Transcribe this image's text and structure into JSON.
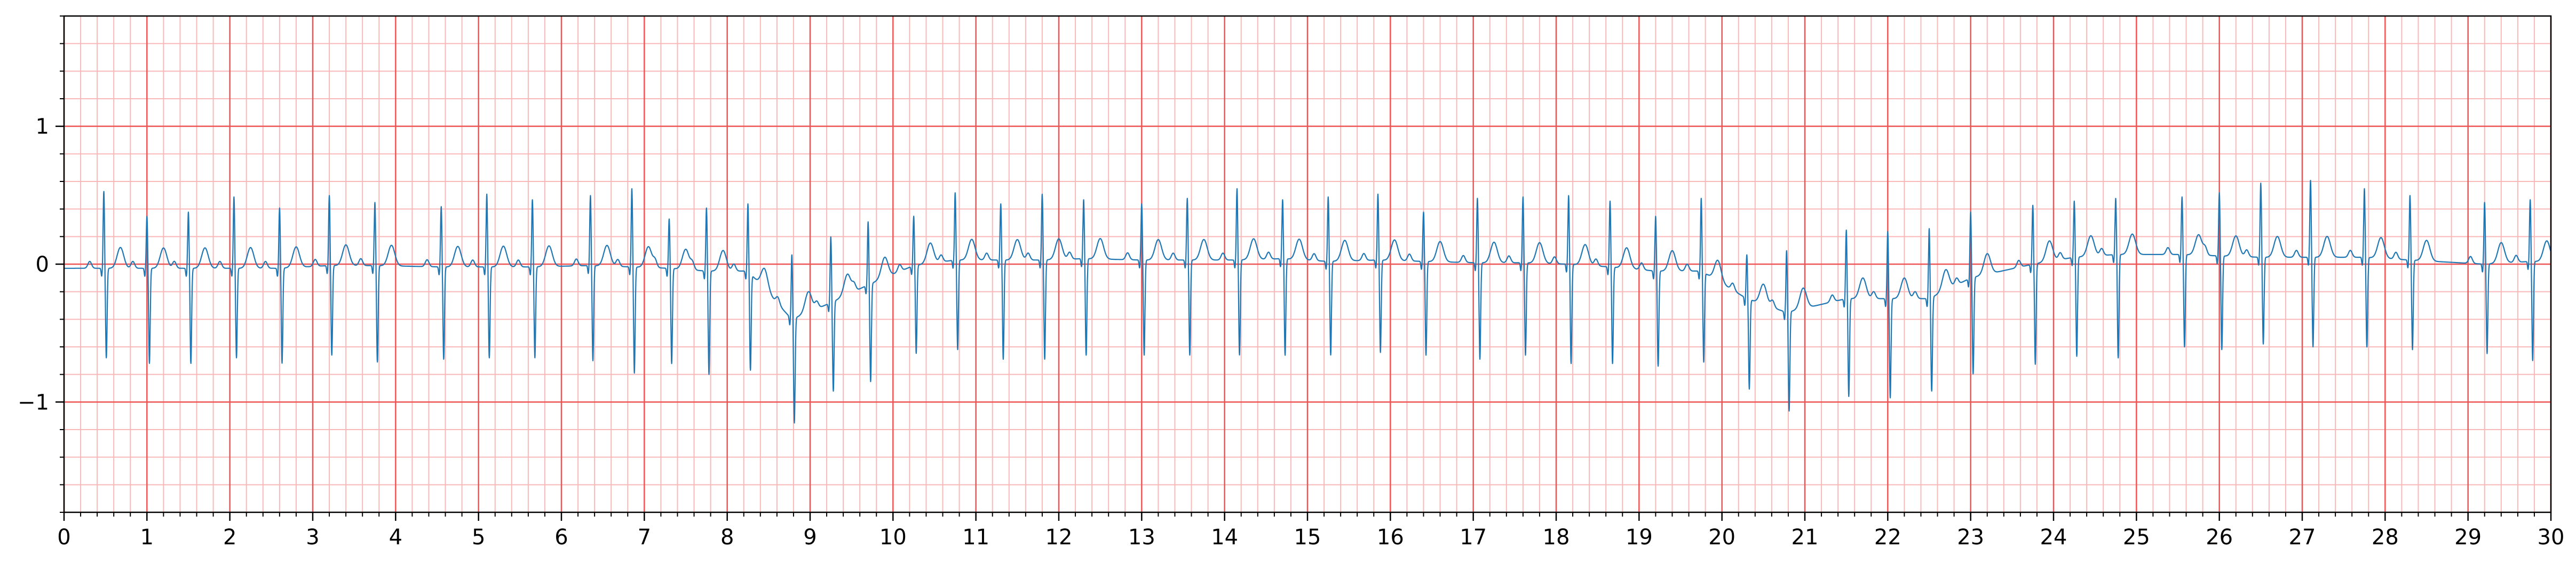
{
  "chart_data": {
    "type": "line",
    "title": "",
    "xlabel": "",
    "ylabel": "",
    "xlim": [
      0,
      30
    ],
    "ylim": [
      -1.8,
      1.8
    ],
    "x_ticks": [
      0,
      1,
      2,
      3,
      4,
      5,
      6,
      7,
      8,
      9,
      10,
      11,
      12,
      13,
      14,
      15,
      16,
      17,
      18,
      19,
      20,
      21,
      22,
      23,
      24,
      25,
      26,
      27,
      28,
      29,
      30
    ],
    "x_tick_labels": [
      "0",
      "1",
      "2",
      "3",
      "4",
      "5",
      "6",
      "7",
      "8",
      "9",
      "10",
      "11",
      "12",
      "13",
      "14",
      "15",
      "16",
      "17",
      "18",
      "19",
      "20",
      "21",
      "22",
      "23",
      "24",
      "25",
      "26",
      "27",
      "28",
      "29",
      "30"
    ],
    "y_ticks": [
      -1,
      0,
      1
    ],
    "y_tick_labels": [
      "−1",
      "0",
      "1"
    ],
    "grid": {
      "major": true,
      "minor": true,
      "major_x_step": 1,
      "major_y_step": 1,
      "minor_x_step": 0.2,
      "minor_y_step": 0.2,
      "major_color": "#ee5555",
      "minor_color": "#f9b9b9"
    },
    "line_color": "#1f77b4",
    "background_color": "#ffffff",
    "series": [
      {
        "beats": [
          {
            "t": 0.48,
            "r": 0.53,
            "s": -0.68,
            "b": -0.03
          },
          {
            "t": 1.0,
            "r": 0.35,
            "s": -0.72,
            "b": -0.03
          },
          {
            "t": 1.5,
            "r": 0.38,
            "s": -0.72,
            "b": -0.03
          },
          {
            "t": 2.05,
            "r": 0.49,
            "s": -0.68,
            "b": -0.03
          },
          {
            "t": 2.6,
            "r": 0.41,
            "s": -0.72,
            "b": -0.03
          },
          {
            "t": 3.2,
            "r": 0.5,
            "s": -0.66,
            "b": -0.01
          },
          {
            "t": 3.75,
            "r": 0.45,
            "s": -0.71,
            "b": -0.01
          },
          {
            "t": 4.55,
            "r": 0.42,
            "s": -0.69,
            "b": -0.02
          },
          {
            "t": 5.1,
            "r": 0.51,
            "s": -0.68,
            "b": -0.02
          },
          {
            "t": 5.65,
            "r": 0.47,
            "s": -0.68,
            "b": -0.02
          },
          {
            "t": 6.35,
            "r": 0.5,
            "s": -0.7,
            "b": -0.01
          },
          {
            "t": 6.85,
            "r": 0.55,
            "s": -0.79,
            "b": -0.02
          },
          {
            "t": 7.3,
            "r": 0.33,
            "s": -0.72,
            "b": -0.03
          },
          {
            "t": 7.75,
            "r": 0.41,
            "s": -0.8,
            "b": -0.05
          },
          {
            "t": 8.25,
            "r": 0.44,
            "s": -0.75,
            "b": -0.05
          },
          {
            "t": 8.78,
            "r": 0.07,
            "s": -1.16,
            "b": -0.4
          },
          {
            "t": 9.25,
            "r": 0.2,
            "s": -0.93,
            "b": -0.28
          },
          {
            "t": 9.7,
            "r": 0.31,
            "s": -0.86,
            "b": -0.15
          },
          {
            "t": 10.25,
            "r": 0.35,
            "s": -0.65,
            "b": -0.01
          },
          {
            "t": 10.75,
            "r": 0.52,
            "s": -0.62,
            "b": 0.03
          },
          {
            "t": 11.3,
            "r": 0.44,
            "s": -0.69,
            "b": 0.03
          },
          {
            "t": 11.8,
            "r": 0.51,
            "s": -0.69,
            "b": 0.03
          },
          {
            "t": 12.3,
            "r": 0.47,
            "s": -0.66,
            "b": 0.04
          },
          {
            "t": 13.0,
            "r": 0.44,
            "s": -0.66,
            "b": 0.03
          },
          {
            "t": 13.55,
            "r": 0.48,
            "s": -0.66,
            "b": 0.03
          },
          {
            "t": 14.15,
            "r": 0.55,
            "s": -0.66,
            "b": 0.03
          },
          {
            "t": 14.7,
            "r": 0.47,
            "s": -0.66,
            "b": 0.04
          },
          {
            "t": 15.25,
            "r": 0.49,
            "s": -0.66,
            "b": 0.02
          },
          {
            "t": 15.85,
            "r": 0.51,
            "s": -0.64,
            "b": 0.03
          },
          {
            "t": 16.4,
            "r": 0.38,
            "s": -0.66,
            "b": 0.02
          },
          {
            "t": 17.05,
            "r": 0.48,
            "s": -0.69,
            "b": 0.01
          },
          {
            "t": 17.6,
            "r": 0.49,
            "s": -0.66,
            "b": 0.01
          },
          {
            "t": 18.15,
            "r": 0.5,
            "s": -0.72,
            "b": 0.0
          },
          {
            "t": 18.65,
            "r": 0.46,
            "s": -0.72,
            "b": -0.02
          },
          {
            "t": 19.2,
            "r": 0.35,
            "s": -0.74,
            "b": -0.05
          },
          {
            "t": 19.75,
            "r": 0.48,
            "s": -0.7,
            "b": -0.05
          },
          {
            "t": 20.3,
            "r": 0.07,
            "s": -0.9,
            "b": -0.25
          },
          {
            "t": 20.78,
            "r": 0.1,
            "s": -1.07,
            "b": -0.35
          },
          {
            "t": 21.5,
            "r": 0.25,
            "s": -0.96,
            "b": -0.25
          },
          {
            "t": 22.0,
            "r": 0.24,
            "s": -0.97,
            "b": -0.25
          },
          {
            "t": 22.5,
            "r": 0.26,
            "s": -0.93,
            "b": -0.25
          },
          {
            "t": 23.0,
            "r": 0.38,
            "s": -0.8,
            "b": -0.1
          },
          {
            "t": 23.75,
            "r": 0.43,
            "s": -0.73,
            "b": 0.0
          },
          {
            "t": 24.25,
            "r": 0.46,
            "s": -0.67,
            "b": 0.05
          },
          {
            "t": 24.75,
            "r": 0.48,
            "s": -0.68,
            "b": 0.07
          },
          {
            "t": 25.55,
            "r": 0.49,
            "s": -0.6,
            "b": 0.07
          },
          {
            "t": 26.0,
            "r": 0.52,
            "s": -0.62,
            "b": 0.06
          },
          {
            "t": 26.5,
            "r": 0.59,
            "s": -0.58,
            "b": 0.05
          },
          {
            "t": 27.1,
            "r": 0.61,
            "s": -0.6,
            "b": 0.05
          },
          {
            "t": 27.75,
            "r": 0.55,
            "s": -0.6,
            "b": 0.05
          },
          {
            "t": 28.3,
            "r": 0.5,
            "s": -0.62,
            "b": 0.03
          },
          {
            "t": 29.2,
            "r": 0.45,
            "s": -0.65,
            "b": 0.0
          },
          {
            "t": 29.75,
            "r": 0.47,
            "s": -0.7,
            "b": 0.02
          }
        ]
      }
    ]
  }
}
